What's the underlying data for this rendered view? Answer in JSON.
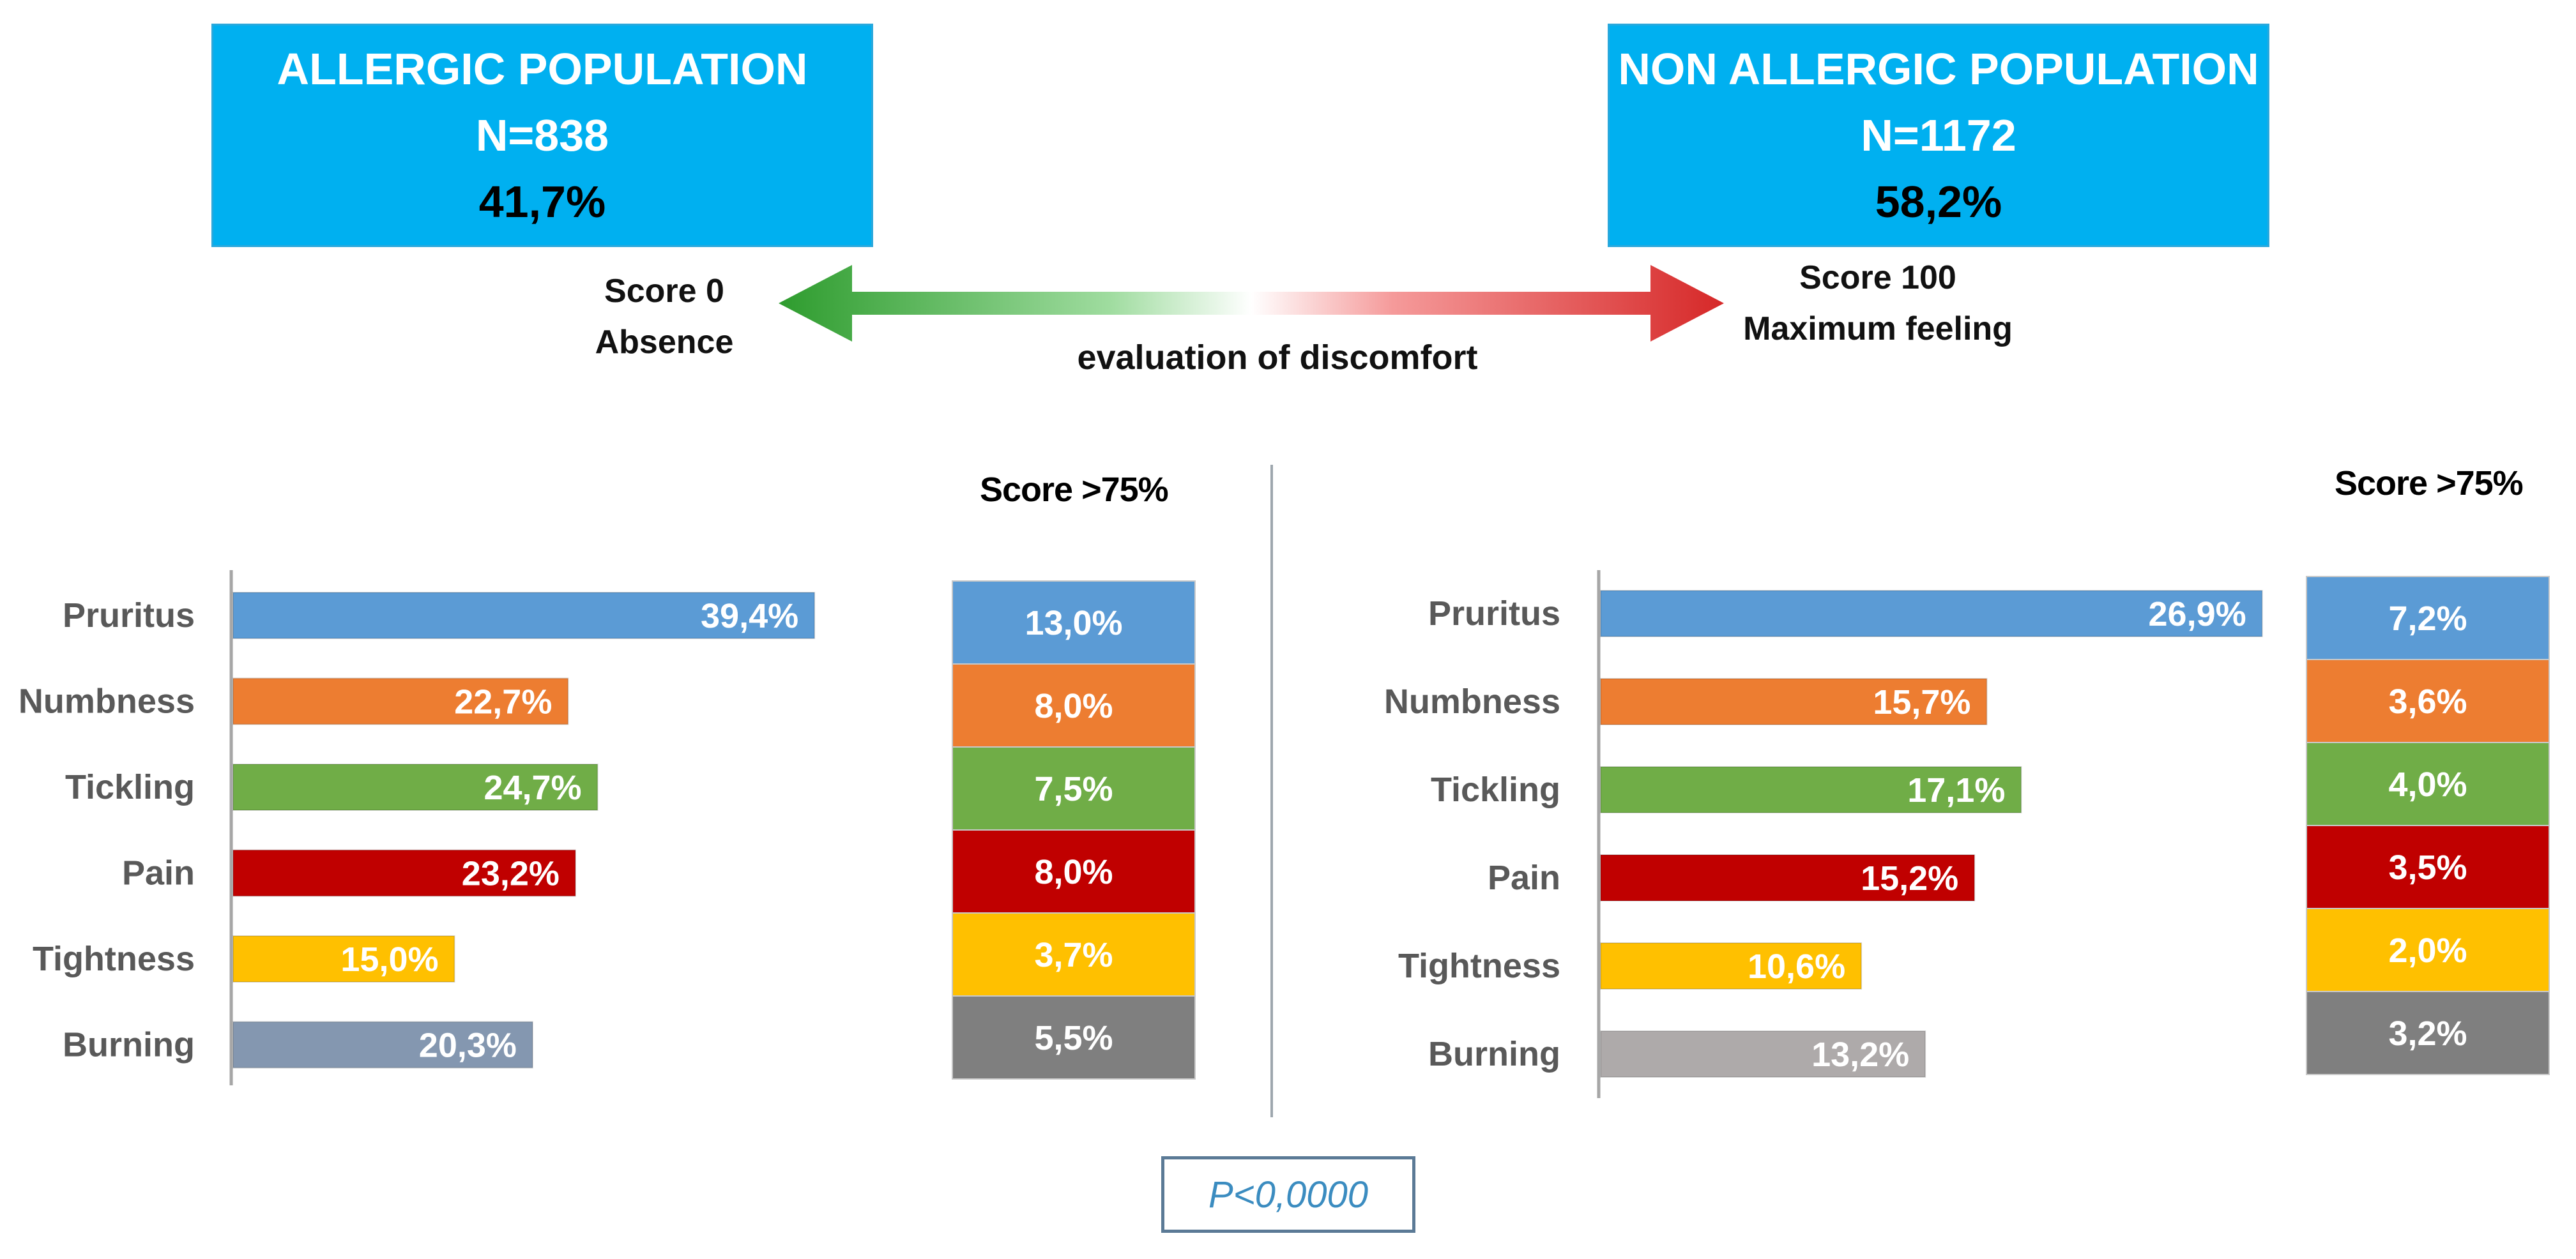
{
  "populations": {
    "left": {
      "title": "ALLERGIC POPULATION",
      "n": "N=838",
      "percent": "41,7%",
      "color": "#00b0f0"
    },
    "right": {
      "title": "NON ALLERGIC POPULATION",
      "n": "N=1172",
      "percent": "58,2%",
      "color": "#00b0f0"
    }
  },
  "scale": {
    "left_line1": "Score 0",
    "left_line2": "Absence",
    "right_line1": "Score 100",
    "right_line2": "Maximum feeling",
    "middle": "evaluation of discomfort",
    "gradient_colors": [
      "#2e9c2e",
      "#9fdc9f",
      "#ffffff",
      "#f59a9a",
      "#d62828"
    ]
  },
  "score_header": "Score >75%",
  "p_value": "P<0,0000",
  "chart_data": [
    {
      "type": "bar",
      "orientation": "horizontal",
      "group": "ALLERGIC POPULATION",
      "categories": [
        "Pruritus",
        "Numbness",
        "Tickling",
        "Pain",
        "Tightness",
        "Burning"
      ],
      "values": [
        39.4,
        22.7,
        24.7,
        23.2,
        15.0,
        20.3
      ],
      "value_labels": [
        "39,4%",
        "22,7%",
        "24,7%",
        "23,2%",
        "15,0%",
        "20,3%"
      ],
      "colors": [
        "#5b9bd5",
        "#ed7d31",
        "#70ad47",
        "#c00000",
        "#ffc000",
        "#8497b0"
      ],
      "score_header": "Score >75%",
      "score_gt75": [
        13.0,
        8.0,
        7.5,
        8.0,
        3.7,
        5.5
      ],
      "score_gt75_labels": [
        "13,0%",
        "8,0%",
        "7,5%",
        "8,0%",
        "3,7%",
        "5,5%"
      ],
      "score_gt75_colors": [
        "#5b9bd5",
        "#ed7d31",
        "#70ad47",
        "#c00000",
        "#ffc000",
        "#7f7f7f"
      ]
    },
    {
      "type": "bar",
      "orientation": "horizontal",
      "group": "NON ALLERGIC POPULATION",
      "categories": [
        "Pruritus",
        "Numbness",
        "Tickling",
        "Pain",
        "Tightness",
        "Burning"
      ],
      "values": [
        26.9,
        15.7,
        17.1,
        15.2,
        10.6,
        13.2
      ],
      "value_labels": [
        "26,9%",
        "15,7%",
        "17,1%",
        "15,2%",
        "10,6%",
        "13,2%"
      ],
      "colors": [
        "#5b9bd5",
        "#ed7d31",
        "#70ad47",
        "#c00000",
        "#ffc000",
        "#aeaaaa"
      ],
      "score_header": "Score >75%",
      "score_gt75": [
        7.2,
        3.6,
        4.0,
        3.5,
        2.0,
        3.2
      ],
      "score_gt75_labels": [
        "7,2%",
        "3,6%",
        "4,0%",
        "3,5%",
        "2,0%",
        "3,2%"
      ],
      "score_gt75_colors": [
        "#5b9bd5",
        "#ed7d31",
        "#70ad47",
        "#c00000",
        "#ffc000",
        "#7f7f7f"
      ]
    }
  ]
}
